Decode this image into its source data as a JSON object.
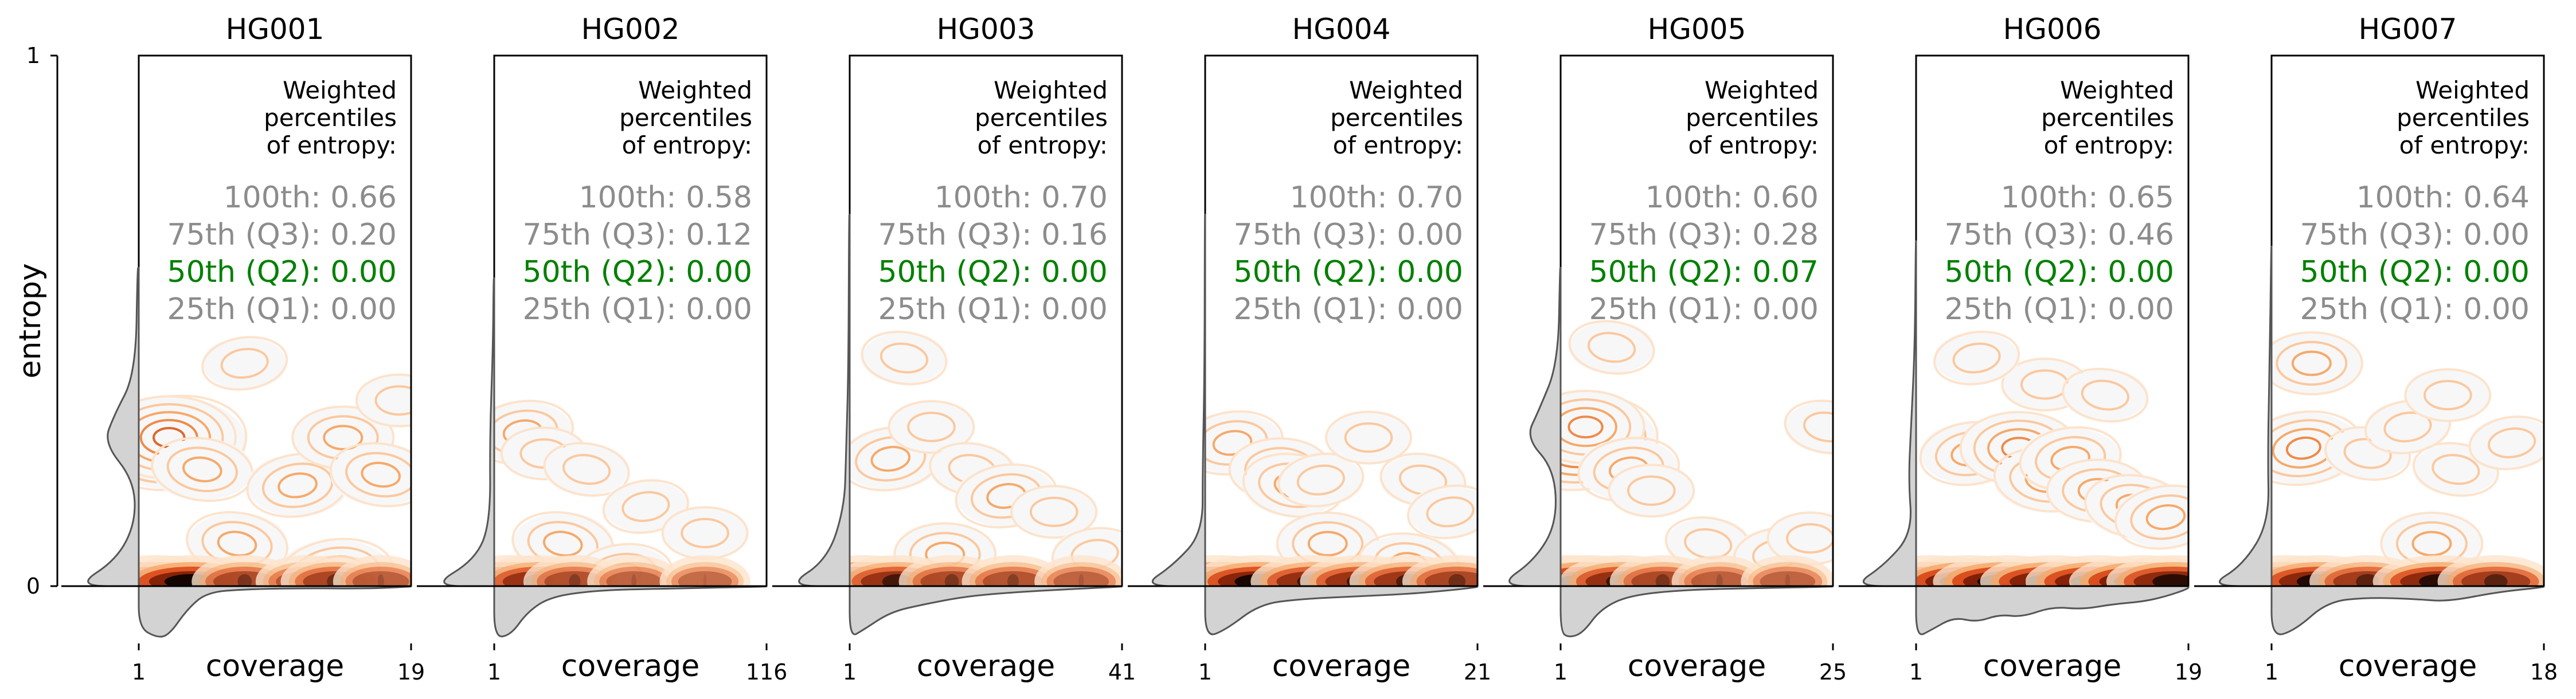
{
  "figure": {
    "y_axis": {
      "label": "entropy",
      "ticks": [
        "0",
        "1"
      ],
      "range": [
        0,
        1
      ]
    },
    "x_axis_label": "coverage",
    "annotation_header": [
      "Weighted",
      "percentiles",
      "of entropy:"
    ],
    "colors": {
      "frame": "#000000",
      "kde_contour": "#f6a96a",
      "kde_dense": "#000000",
      "marginal_fill": "#d3d3d3",
      "marginal_line": "#555555",
      "percentile_default": "#8c8c8c",
      "percentile_median": "#008000"
    }
  },
  "chart_data": [
    {
      "type": "kde-density-with-marginals",
      "title": "HG001",
      "x_ticks": [
        "1",
        "19"
      ],
      "xlim": [
        1,
        19
      ],
      "ylim": [
        0,
        1
      ],
      "percentiles": [
        {
          "label": "100th: 0.66",
          "value": 0.66
        },
        {
          "label": "75th (Q3): 0.20",
          "value": 0.2
        },
        {
          "label": "50th (Q2): 0.00",
          "value": 0.0,
          "highlight": true
        },
        {
          "label": "25th (Q1): 0.00",
          "value": 0.0
        }
      ],
      "blobs": [
        {
          "x": 3.2,
          "y": 0.27,
          "level": 5
        },
        {
          "x": 3.0,
          "y": 0.28,
          "level": 4
        },
        {
          "x": 5.2,
          "y": 0.22,
          "level": 2
        },
        {
          "x": 11.5,
          "y": 0.19,
          "level": 2
        },
        {
          "x": 14.5,
          "y": 0.28,
          "level": 2
        },
        {
          "x": 17.0,
          "y": 0.21,
          "level": 2
        },
        {
          "x": 8.0,
          "y": 0.42,
          "level": 1
        },
        {
          "x": 18.2,
          "y": 0.35,
          "level": 1
        },
        {
          "x": 7.5,
          "y": 0.08,
          "level": 2
        },
        {
          "x": 14.0,
          "y": 0.02,
          "level": 3
        }
      ],
      "band": [
        {
          "x": 2.2,
          "v": 1.0
        },
        {
          "x": 4.5,
          "v": 0.85
        },
        {
          "x": 8.0,
          "v": 0.3
        },
        {
          "x": 12.0,
          "v": 0.2
        },
        {
          "x": 14.0,
          "v": 0.35
        },
        {
          "x": 17.0,
          "v": 0.15
        }
      ],
      "marg_y": [
        [
          0.0,
          1.0
        ],
        [
          0.05,
          0.35
        ],
        [
          0.12,
          0.05
        ],
        [
          0.2,
          0.08
        ],
        [
          0.27,
          0.55
        ],
        [
          0.32,
          0.4
        ],
        [
          0.4,
          0.05
        ],
        [
          0.6,
          0.02
        ]
      ],
      "marg_x": [
        [
          1.0,
          0.8
        ],
        [
          2.2,
          1.0
        ],
        [
          3.0,
          0.95
        ],
        [
          4.2,
          0.45
        ],
        [
          5.5,
          0.12
        ],
        [
          8.0,
          0.06
        ],
        [
          12.0,
          0.04
        ],
        [
          16.0,
          0.05
        ],
        [
          19.0,
          0.01
        ]
      ]
    },
    {
      "type": "kde-density-with-marginals",
      "title": "HG002",
      "x_ticks": [
        "1",
        "116"
      ],
      "xlim": [
        1,
        116
      ],
      "ylim": [
        0,
        1
      ],
      "percentiles": [
        {
          "label": "100th: 0.58",
          "value": 0.58
        },
        {
          "label": "75th (Q3): 0.12",
          "value": 0.12
        },
        {
          "label": "50th (Q2): 0.00",
          "value": 0.0,
          "highlight": true
        },
        {
          "label": "25th (Q1): 0.00",
          "value": 0.0
        }
      ],
      "blobs": [
        {
          "x": 13.0,
          "y": 0.29,
          "level": 2
        },
        {
          "x": 22.0,
          "y": 0.25,
          "level": 1
        },
        {
          "x": 40.0,
          "y": 0.22,
          "level": 1
        },
        {
          "x": 65.0,
          "y": 0.15,
          "level": 1
        },
        {
          "x": 90.0,
          "y": 0.1,
          "level": 1
        },
        {
          "x": 30.0,
          "y": 0.08,
          "level": 2
        },
        {
          "x": 55.0,
          "y": 0.02,
          "level": 2
        }
      ],
      "band": [
        {
          "x": 8.0,
          "v": 1.0
        },
        {
          "x": 20.0,
          "v": 0.55
        },
        {
          "x": 35.0,
          "v": 0.25
        },
        {
          "x": 60.0,
          "v": 0.12
        },
        {
          "x": 90.0,
          "v": 0.08
        }
      ],
      "marg_y": [
        [
          0.0,
          1.0
        ],
        [
          0.05,
          0.3
        ],
        [
          0.12,
          0.06
        ],
        [
          0.28,
          0.07
        ],
        [
          0.45,
          0.02
        ],
        [
          0.58,
          0.01
        ]
      ],
      "marg_x": [
        [
          1.0,
          1.0
        ],
        [
          8.0,
          0.95
        ],
        [
          15.0,
          0.5
        ],
        [
          25.0,
          0.2
        ],
        [
          45.0,
          0.08
        ],
        [
          70.0,
          0.05
        ],
        [
          116.0,
          0.01
        ]
      ]
    },
    {
      "type": "kde-density-with-marginals",
      "title": "HG003",
      "x_ticks": [
        "1",
        "41"
      ],
      "xlim": [
        1,
        41
      ],
      "ylim": [
        0,
        1
      ],
      "percentiles": [
        {
          "label": "100th: 0.70",
          "value": 0.7
        },
        {
          "label": "75th (Q3): 0.16",
          "value": 0.16
        },
        {
          "label": "50th (Q2): 0.00",
          "value": 0.0,
          "highlight": true
        },
        {
          "label": "25th (Q1): 0.00",
          "value": 0.0
        }
      ],
      "blobs": [
        {
          "x": 7.0,
          "y": 0.24,
          "level": 2
        },
        {
          "x": 13.0,
          "y": 0.3,
          "level": 1
        },
        {
          "x": 19.0,
          "y": 0.22,
          "level": 1
        },
        {
          "x": 24.0,
          "y": 0.17,
          "level": 2
        },
        {
          "x": 31.0,
          "y": 0.14,
          "level": 1
        },
        {
          "x": 9.0,
          "y": 0.43,
          "level": 1
        },
        {
          "x": 37.0,
          "y": 0.06,
          "level": 1
        },
        {
          "x": 15.0,
          "y": 0.06,
          "level": 2
        }
      ],
      "band": [
        {
          "x": 3.0,
          "v": 1.0
        },
        {
          "x": 8.0,
          "v": 0.55
        },
        {
          "x": 16.0,
          "v": 0.3
        },
        {
          "x": 25.0,
          "v": 0.25
        },
        {
          "x": 35.0,
          "v": 0.12
        }
      ],
      "marg_y": [
        [
          0.0,
          1.0
        ],
        [
          0.05,
          0.35
        ],
        [
          0.15,
          0.08
        ],
        [
          0.25,
          0.06
        ],
        [
          0.4,
          0.02
        ],
        [
          0.7,
          0.01
        ]
      ],
      "marg_x": [
        [
          1.0,
          1.0
        ],
        [
          3.0,
          0.85
        ],
        [
          7.0,
          0.5
        ],
        [
          12.0,
          0.35
        ],
        [
          18.0,
          0.2
        ],
        [
          25.0,
          0.12
        ],
        [
          33.0,
          0.06
        ],
        [
          41.0,
          0.01
        ]
      ]
    },
    {
      "type": "kde-density-with-marginals",
      "title": "HG004",
      "x_ticks": [
        "1",
        "21"
      ],
      "xlim": [
        1,
        21
      ],
      "ylim": [
        0,
        1
      ],
      "percentiles": [
        {
          "label": "100th: 0.70",
          "value": 0.7
        },
        {
          "label": "75th (Q3): 0.00",
          "value": 0.0
        },
        {
          "label": "50th (Q2): 0.00",
          "value": 0.0,
          "highlight": true
        },
        {
          "label": "25th (Q1): 0.00",
          "value": 0.0
        }
      ],
      "blobs": [
        {
          "x": 3.0,
          "y": 0.27,
          "level": 2
        },
        {
          "x": 6.5,
          "y": 0.22,
          "level": 2
        },
        {
          "x": 7.5,
          "y": 0.19,
          "level": 2
        },
        {
          "x": 9.5,
          "y": 0.2,
          "level": 1
        },
        {
          "x": 13.0,
          "y": 0.28,
          "level": 1
        },
        {
          "x": 17.0,
          "y": 0.2,
          "level": 1
        },
        {
          "x": 19.0,
          "y": 0.14,
          "level": 1
        },
        {
          "x": 10.0,
          "y": 0.08,
          "level": 2
        },
        {
          "x": 16.0,
          "y": 0.04,
          "level": 2
        }
      ],
      "band": [
        {
          "x": 2.0,
          "v": 1.0
        },
        {
          "x": 5.0,
          "v": 0.8
        },
        {
          "x": 9.0,
          "v": 0.6
        },
        {
          "x": 12.5,
          "v": 0.55
        },
        {
          "x": 16.0,
          "v": 0.5
        },
        {
          "x": 19.5,
          "v": 0.35
        }
      ],
      "marg_y": [
        [
          0.0,
          1.0
        ],
        [
          0.04,
          0.5
        ],
        [
          0.1,
          0.04
        ],
        [
          0.22,
          0.04
        ],
        [
          0.4,
          0.01
        ],
        [
          0.7,
          0.005
        ]
      ],
      "marg_x": [
        [
          1.0,
          1.0
        ],
        [
          2.5,
          0.85
        ],
        [
          5.0,
          0.35
        ],
        [
          8.0,
          0.25
        ],
        [
          12.0,
          0.2
        ],
        [
          16.0,
          0.15
        ],
        [
          19.0,
          0.08
        ],
        [
          21.0,
          0.02
        ]
      ]
    },
    {
      "type": "kde-density-with-marginals",
      "title": "HG005",
      "x_ticks": [
        "1",
        "25"
      ],
      "xlim": [
        1,
        25
      ],
      "ylim": [
        0,
        1
      ],
      "percentiles": [
        {
          "label": "100th: 0.60",
          "value": 0.6
        },
        {
          "label": "75th (Q3): 0.28",
          "value": 0.28
        },
        {
          "label": "50th (Q2): 0.07",
          "value": 0.07,
          "highlight": true
        },
        {
          "label": "25th (Q1): 0.00",
          "value": 0.0
        }
      ],
      "blobs": [
        {
          "x": 3.0,
          "y": 0.27,
          "level": 5
        },
        {
          "x": 3.2,
          "y": 0.3,
          "level": 3
        },
        {
          "x": 5.5,
          "y": 0.45,
          "level": 1
        },
        {
          "x": 7.0,
          "y": 0.22,
          "level": 2
        },
        {
          "x": 9.0,
          "y": 0.18,
          "level": 1
        },
        {
          "x": 14.0,
          "y": 0.08,
          "level": 1
        },
        {
          "x": 20.0,
          "y": 0.06,
          "level": 1
        },
        {
          "x": 23.0,
          "y": 0.09,
          "level": 1
        },
        {
          "x": 24.5,
          "y": 0.3,
          "level": 1
        }
      ],
      "band": [
        {
          "x": 1.8,
          "v": 1.0
        },
        {
          "x": 3.5,
          "v": 0.95
        },
        {
          "x": 6.5,
          "v": 0.6
        },
        {
          "x": 10.0,
          "v": 0.3
        },
        {
          "x": 15.0,
          "v": 0.15
        },
        {
          "x": 21.0,
          "v": 0.12
        }
      ],
      "marg_y": [
        [
          0.0,
          1.0
        ],
        [
          0.05,
          0.4
        ],
        [
          0.12,
          0.06
        ],
        [
          0.22,
          0.1
        ],
        [
          0.28,
          0.55
        ],
        [
          0.33,
          0.35
        ],
        [
          0.42,
          0.04
        ],
        [
          0.6,
          0.01
        ]
      ],
      "marg_x": [
        [
          1.0,
          0.9
        ],
        [
          1.8,
          1.0
        ],
        [
          3.0,
          0.9
        ],
        [
          4.5,
          0.45
        ],
        [
          7.0,
          0.18
        ],
        [
          12.0,
          0.07
        ],
        [
          18.0,
          0.04
        ],
        [
          25.0,
          0.01
        ]
      ]
    },
    {
      "type": "kde-density-with-marginals",
      "title": "HG006",
      "x_ticks": [
        "1",
        "19"
      ],
      "xlim": [
        1,
        19
      ],
      "ylim": [
        0,
        1
      ],
      "percentiles": [
        {
          "label": "100th: 0.65",
          "value": 0.65
        },
        {
          "label": "75th (Q3): 0.46",
          "value": 0.46
        },
        {
          "label": "50th (Q2): 0.00",
          "value": 0.0,
          "highlight": true
        },
        {
          "label": "25th (Q1): 0.00",
          "value": 0.0
        }
      ],
      "blobs": [
        {
          "x": 4.6,
          "y": 0.25,
          "level": 2
        },
        {
          "x": 7.8,
          "y": 0.26,
          "level": 3
        },
        {
          "x": 9.5,
          "y": 0.2,
          "level": 2
        },
        {
          "x": 11.2,
          "y": 0.24,
          "level": 2
        },
        {
          "x": 13.0,
          "y": 0.18,
          "level": 2
        },
        {
          "x": 15.5,
          "y": 0.15,
          "level": 2
        },
        {
          "x": 17.5,
          "y": 0.13,
          "level": 2
        },
        {
          "x": 9.5,
          "y": 0.38,
          "level": 1
        },
        {
          "x": 13.5,
          "y": 0.36,
          "level": 1
        },
        {
          "x": 5.0,
          "y": 0.43,
          "level": 1
        }
      ],
      "band": [
        {
          "x": 2.0,
          "v": 0.95
        },
        {
          "x": 4.5,
          "v": 0.9
        },
        {
          "x": 7.0,
          "v": 0.9
        },
        {
          "x": 10.0,
          "v": 0.85
        },
        {
          "x": 13.0,
          "v": 0.85
        },
        {
          "x": 16.0,
          "v": 0.9
        },
        {
          "x": 18.0,
          "v": 0.7
        }
      ],
      "marg_y": [
        [
          0.0,
          1.0
        ],
        [
          0.04,
          0.5
        ],
        [
          0.1,
          0.06
        ],
        [
          0.2,
          0.12
        ],
        [
          0.3,
          0.08
        ],
        [
          0.45,
          0.02
        ],
        [
          0.65,
          0.005
        ]
      ],
      "marg_x": [
        [
          1.0,
          1.0
        ],
        [
          2.0,
          0.85
        ],
        [
          3.5,
          0.6
        ],
        [
          5.0,
          0.7
        ],
        [
          6.5,
          0.55
        ],
        [
          8.0,
          0.6
        ],
        [
          10.0,
          0.4
        ],
        [
          12.0,
          0.45
        ],
        [
          14.0,
          0.35
        ],
        [
          16.0,
          0.3
        ],
        [
          17.5,
          0.2
        ],
        [
          19.0,
          0.05
        ]
      ]
    },
    {
      "type": "kde-density-with-marginals",
      "title": "HG007",
      "x_ticks": [
        "1",
        "18"
      ],
      "xlim": [
        1,
        18
      ],
      "ylim": [
        0,
        1
      ],
      "percentiles": [
        {
          "label": "100th: 0.64",
          "value": 0.64
        },
        {
          "label": "75th (Q3): 0.00",
          "value": 0.0
        },
        {
          "label": "50th (Q2): 0.00",
          "value": 0.0,
          "highlight": true
        },
        {
          "label": "25th (Q1): 0.00",
          "value": 0.0
        }
      ],
      "blobs": [
        {
          "x": 3.0,
          "y": 0.26,
          "level": 3
        },
        {
          "x": 3.5,
          "y": 0.42,
          "level": 2
        },
        {
          "x": 7.0,
          "y": 0.25,
          "level": 1
        },
        {
          "x": 9.5,
          "y": 0.3,
          "level": 1
        },
        {
          "x": 12.0,
          "y": 0.36,
          "level": 1
        },
        {
          "x": 12.5,
          "y": 0.22,
          "level": 1
        },
        {
          "x": 16.0,
          "y": 0.27,
          "level": 1
        },
        {
          "x": 11.0,
          "y": 0.08,
          "level": 2
        }
      ],
      "band": [
        {
          "x": 2.0,
          "v": 1.0
        },
        {
          "x": 4.0,
          "v": 0.75
        },
        {
          "x": 7.0,
          "v": 0.45
        },
        {
          "x": 11.5,
          "v": 0.7
        },
        {
          "x": 15.0,
          "v": 0.45
        }
      ],
      "marg_y": [
        [
          0.0,
          1.0
        ],
        [
          0.04,
          0.45
        ],
        [
          0.12,
          0.04
        ],
        [
          0.25,
          0.06
        ],
        [
          0.42,
          0.03
        ],
        [
          0.64,
          0.005
        ]
      ],
      "marg_x": [
        [
          1.0,
          1.0
        ],
        [
          2.5,
          0.85
        ],
        [
          4.5,
          0.3
        ],
        [
          7.0,
          0.22
        ],
        [
          10.0,
          0.25
        ],
        [
          12.0,
          0.3
        ],
        [
          15.0,
          0.12
        ],
        [
          18.0,
          0.02
        ]
      ]
    }
  ]
}
